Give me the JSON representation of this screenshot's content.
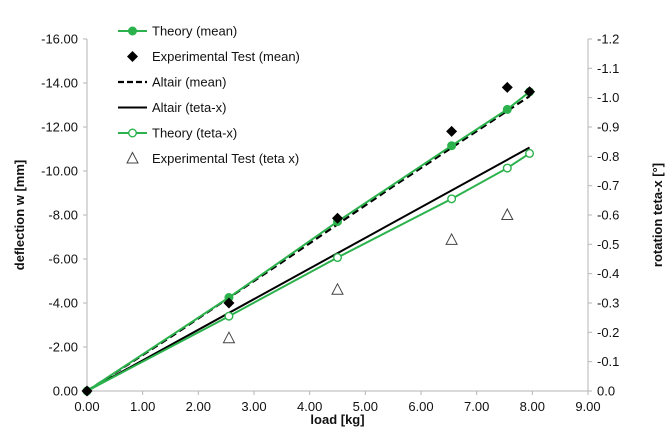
{
  "chart_data": {
    "type": "scatter",
    "xlabel": "load [kg]",
    "ylabel": "deflection w [mm]",
    "y2label": "rotation teta-x [°]",
    "xlim": [
      0,
      9
    ],
    "ylim": [
      0,
      -16
    ],
    "y2lim": [
      0,
      -1.2
    ],
    "grid": false,
    "legend_position": "top-left",
    "x_ticks": [
      "0.00",
      "1.00",
      "2.00",
      "3.00",
      "4.00",
      "5.00",
      "6.00",
      "7.00",
      "8.00",
      "9.00"
    ],
    "y_ticks": [
      "0.00",
      "-2.00",
      "-4.00",
      "-6.00",
      "-8.00",
      "-10.00",
      "-12.00",
      "-14.00",
      "-16.00"
    ],
    "y2_ticks": [
      "0.0",
      "-0.1",
      "-0.2",
      "-0.3",
      "-0.4",
      "-0.5",
      "-0.6",
      "-0.7",
      "-0.8",
      "-0.9",
      "-1.0",
      "-1.1",
      "-1.2"
    ],
    "series": [
      {
        "name": "Theory (mean)",
        "axis": "left",
        "style": "solid-marker-filled-circle",
        "color": "#2bb24c",
        "x": [
          0,
          2.55,
          4.5,
          6.55,
          7.55,
          7.95
        ],
        "y": [
          0,
          -4.25,
          -7.7,
          -11.15,
          -12.8,
          -13.6
        ]
      },
      {
        "name": "Experimental Test (mean)",
        "axis": "left",
        "style": "marker-diamond",
        "color": "#000000",
        "x": [
          0,
          2.55,
          4.5,
          6.55,
          7.55,
          7.95
        ],
        "y": [
          0,
          -4.0,
          -7.85,
          -11.8,
          -13.8,
          -13.6
        ]
      },
      {
        "name": "Altair (mean)",
        "axis": "left",
        "style": "dashed",
        "color": "#000000",
        "x": [
          0,
          1.5,
          3.5,
          5.5,
          7.95
        ],
        "y": [
          0,
          -2.45,
          -5.85,
          -9.3,
          -13.4
        ]
      },
      {
        "name": "Altair (teta-x)",
        "axis": "right",
        "style": "solid",
        "color": "#000000",
        "x": [
          0,
          7.95
        ],
        "y": [
          0,
          -0.83
        ]
      },
      {
        "name": "Theory (teta-x)",
        "axis": "right",
        "style": "solid-marker-hollow-circle",
        "color": "#2bb24c",
        "x": [
          0,
          2.55,
          4.5,
          6.55,
          7.55,
          7.95
        ],
        "y": [
          0,
          -0.255,
          -0.455,
          -0.655,
          -0.76,
          -0.81
        ]
      },
      {
        "name": "Experimental Test (teta x)",
        "axis": "right",
        "style": "marker-hollow-triangle",
        "color": "#444444",
        "x": [
          2.55,
          4.5,
          6.55,
          7.55
        ],
        "y": [
          -0.18,
          -0.345,
          -0.515,
          -0.6
        ]
      }
    ]
  }
}
